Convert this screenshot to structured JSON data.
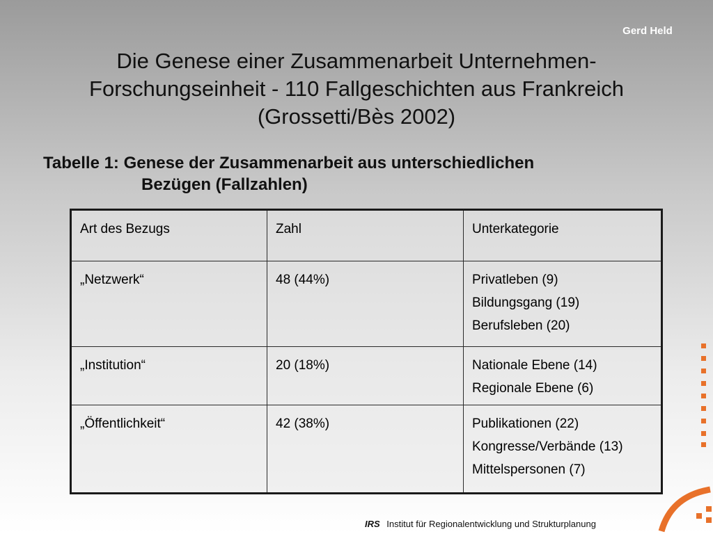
{
  "header": {
    "author": "Gerd Held"
  },
  "title": {
    "lines": [
      "Die Genese einer Zusammenarbeit Unternehmen-",
      "Forschungseinheit - 110 Fallgeschichten aus Frankreich",
      "(Grossetti/Bès 2002)"
    ]
  },
  "table_caption": {
    "lines": [
      "Tabelle 1: Genese der Zusammenarbeit aus unterschiedlichen",
      "Bezügen (Fallzahlen)"
    ]
  },
  "table": {
    "headers": [
      "Art des Bezugs",
      "Zahl",
      "Unterkategorie"
    ],
    "rows": [
      {
        "art": "„Netzwerk“",
        "zahl": "48 (44%)",
        "unter": [
          "Privatleben (9)",
          "Bildungsgang (19)",
          "Berufsleben (20)"
        ]
      },
      {
        "art": "„Institution“",
        "zahl": "20 (18%)",
        "unter": [
          "Nationale Ebene (14)",
          "Regionale Ebene (6)"
        ]
      },
      {
        "art": "„Öffentlichkeit“",
        "zahl": "42 (38%)",
        "unter": [
          "Publikationen (22)",
          "Kongresse/Verbände (13)",
          "Mittelspersonen (7)"
        ]
      }
    ]
  },
  "footer": {
    "org_short": "IRS",
    "org_name": "Institut für Regionalentwicklung und Strukturplanung"
  },
  "colors": {
    "accent": "#e8712a"
  },
  "decor": {
    "logo_mark": "orange-dot-column-and-arc"
  }
}
